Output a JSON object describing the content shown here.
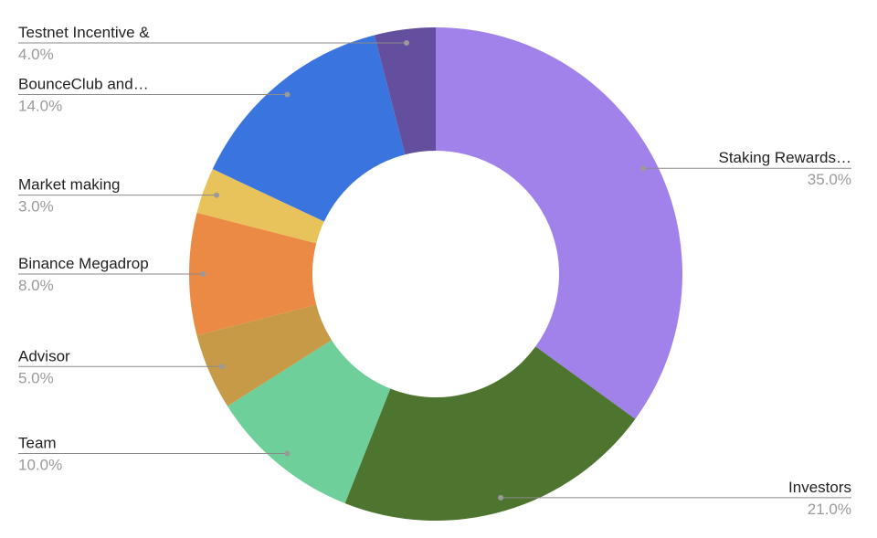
{
  "chart_data": {
    "type": "donut",
    "categories": [
      "Staking Rewards…",
      "Investors",
      "Team",
      "Advisor",
      "Binance Megadrop",
      "Market making",
      "BounceClub and…",
      "Testnet Incentive &"
    ],
    "values": [
      35,
      21,
      10,
      5,
      8,
      3,
      14,
      4
    ],
    "value_labels": [
      "35.0%",
      "21.0%",
      "10.0%",
      "5.0%",
      "8.0%",
      "3.0%",
      "14.0%",
      "4.0%"
    ],
    "colors": [
      "#a182ea",
      "#4e7530",
      "#6ecf9a",
      "#c79a48",
      "#eb8a45",
      "#e8c25a",
      "#3a74de",
      "#644e9e"
    ]
  }
}
